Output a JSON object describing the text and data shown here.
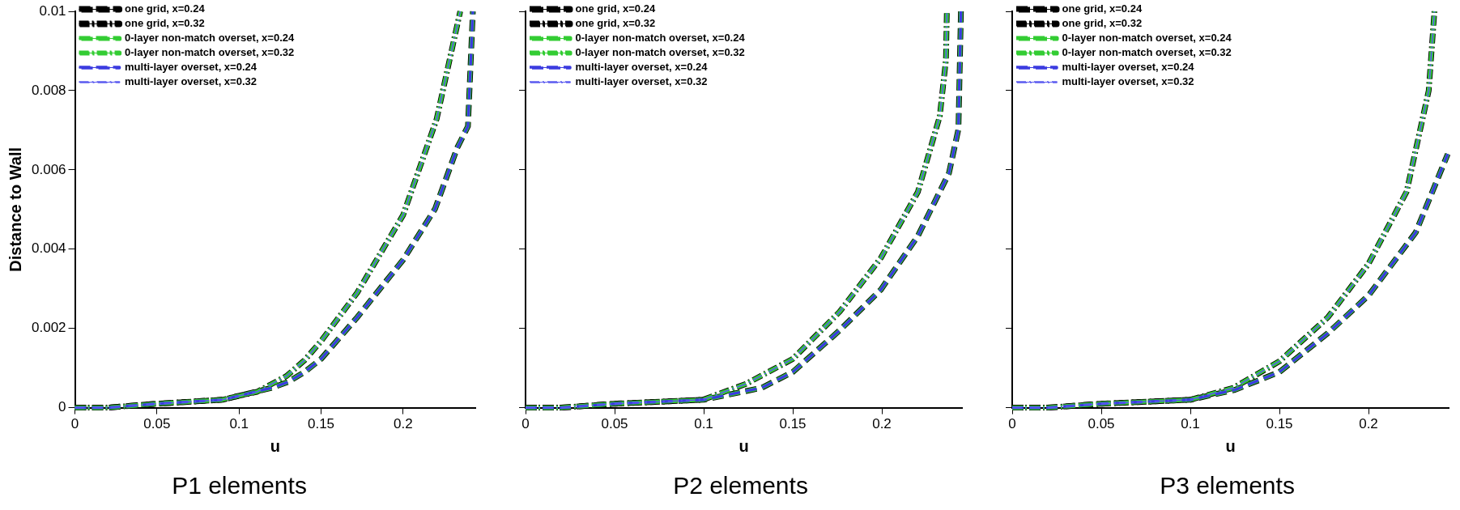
{
  "chart_data": [
    {
      "type": "line",
      "title": "P1 elements",
      "xlabel": "u",
      "ylabel": "Distance to Wall",
      "xlim": [
        0,
        0.244
      ],
      "ylim": [
        0,
        0.01
      ],
      "xticks": [
        0,
        0.05,
        0.1,
        0.15,
        0.2
      ],
      "yticks": [
        0,
        0.002,
        0.004,
        0.006,
        0.008,
        0.01
      ],
      "grid": false,
      "legend": "top left",
      "marker": "none",
      "series": [
        {
          "name": "one grid, x=0.24",
          "color": "#000000",
          "line_style": "dashed",
          "x": [
            0,
            0.02,
            0.05,
            0.09,
            0.1,
            0.11,
            0.12,
            0.13,
            0.14,
            0.15,
            0.172,
            0.2,
            0.2195,
            0.233,
            0.2395,
            0.2425
          ],
          "values": [
            0,
            0,
            0.0001,
            0.0002,
            0.0003,
            0.0004,
            0.0005,
            0.00065,
            0.0009,
            0.00123,
            0.00228,
            0.00373,
            0.00502,
            0.00656,
            0.0071,
            0.01
          ]
        },
        {
          "name": "one grid, x=0.32",
          "color": "#000000",
          "line_style": "dashdot",
          "x": [
            0,
            0.02,
            0.05,
            0.09,
            0.1,
            0.111,
            0.12,
            0.129,
            0.14,
            0.15,
            0.172,
            0.2,
            0.2204,
            0.2348
          ],
          "values": [
            0,
            0,
            0.0001,
            0.0002,
            0.0003,
            0.0004,
            0.0006,
            0.0008,
            0.0012,
            0.00168,
            0.0029,
            0.00486,
            0.00728,
            0.01
          ]
        },
        {
          "name": "0-layer non-match overset, x=0.24",
          "color": "#33cc33",
          "line_style": "dashed",
          "x": [
            0,
            0.02,
            0.05,
            0.09,
            0.1,
            0.11,
            0.12,
            0.13,
            0.14,
            0.15,
            0.172,
            0.2,
            0.2195,
            0.233,
            0.2395,
            0.2425
          ],
          "values": [
            0,
            0,
            0.0001,
            0.0002,
            0.0003,
            0.0004,
            0.0005,
            0.00065,
            0.0009,
            0.00123,
            0.00228,
            0.00373,
            0.00502,
            0.00656,
            0.0071,
            0.01
          ]
        },
        {
          "name": "0-layer non-match overset, x=0.32",
          "color": "#33cc33",
          "line_style": "dashdot",
          "x": [
            0,
            0.02,
            0.05,
            0.09,
            0.1,
            0.111,
            0.12,
            0.129,
            0.14,
            0.15,
            0.172,
            0.2,
            0.2204,
            0.2348
          ],
          "values": [
            0,
            0,
            0.0001,
            0.0002,
            0.0003,
            0.0004,
            0.0006,
            0.0008,
            0.0012,
            0.00168,
            0.0029,
            0.00486,
            0.00728,
            0.01
          ]
        },
        {
          "name": "multi-layer overset, x=0.24",
          "color": "#3b3be0",
          "line_style": "dashed",
          "x": [
            0,
            0.02,
            0.05,
            0.09,
            0.1,
            0.11,
            0.12,
            0.13,
            0.14,
            0.15,
            0.172,
            0.2,
            0.2195,
            0.233,
            0.2395,
            0.2425
          ],
          "values": [
            0,
            0,
            0.0001,
            0.0002,
            0.0003,
            0.0004,
            0.0005,
            0.00065,
            0.0009,
            0.00123,
            0.00228,
            0.00373,
            0.00502,
            0.00656,
            0.0071,
            0.01
          ]
        },
        {
          "name": "multi-layer overset, x=0.32",
          "color": "#5a5af0",
          "line_style": "dashdot",
          "x": [
            0,
            0.02,
            0.05,
            0.09,
            0.1,
            0.111,
            0.12,
            0.129,
            0.14,
            0.15,
            0.172,
            0.2,
            0.2204,
            0.2348
          ],
          "values": [
            0,
            0,
            0.0001,
            0.0002,
            0.0003,
            0.0004,
            0.0006,
            0.0008,
            0.0012,
            0.00168,
            0.0029,
            0.00486,
            0.00728,
            0.01
          ]
        }
      ]
    },
    {
      "type": "line",
      "title": "P2 elements",
      "xlabel": "u",
      "xlim": [
        0,
        0.245
      ],
      "ylim": [
        0,
        0.01
      ],
      "xticks": [
        0,
        0.05,
        0.1,
        0.15,
        0.2
      ],
      "yticks": [
        0,
        0.002,
        0.004,
        0.006,
        0.008,
        0.01
      ],
      "tick_labels": "x",
      "grid": false,
      "legend": "top left",
      "marker": "none",
      "series": [
        {
          "name": "one grid, x=0.24",
          "color": "#000000",
          "line_style": "dashed",
          "x": [
            0,
            0.02,
            0.05,
            0.1,
            0.1325,
            0.15,
            0.1763,
            0.1995,
            0.2202,
            0.2377,
            0.243,
            0.2444
          ],
          "values": [
            0,
            0,
            0.0001,
            0.0002,
            0.0005,
            0.0009,
            0.00195,
            0.00298,
            0.00433,
            0.00592,
            0.00703,
            0.01
          ]
        },
        {
          "name": "one grid, x=0.32",
          "color": "#000000",
          "line_style": "dashdot",
          "x": [
            0,
            0.02,
            0.05,
            0.0996,
            0.1237,
            0.15,
            0.1763,
            0.1995,
            0.2202,
            0.2325,
            0.236,
            0.2365
          ],
          "values": [
            0,
            0,
            0.0001,
            0.0002,
            0.0006,
            0.00123,
            0.00242,
            0.00378,
            0.00544,
            0.00735,
            0.00878,
            0.01
          ]
        },
        {
          "name": "0-layer non-match overset, x=0.24",
          "color": "#33cc33",
          "line_style": "dashed",
          "x": [
            0,
            0.02,
            0.05,
            0.1,
            0.1325,
            0.15,
            0.1763,
            0.1995,
            0.2202,
            0.2377,
            0.243,
            0.2444
          ],
          "values": [
            0,
            0,
            0.0001,
            0.0002,
            0.0005,
            0.0009,
            0.00195,
            0.00298,
            0.00433,
            0.00592,
            0.00703,
            0.01
          ]
        },
        {
          "name": "0-layer non-match overset, x=0.32",
          "color": "#33cc33",
          "line_style": "dashdot",
          "x": [
            0,
            0.02,
            0.05,
            0.0996,
            0.1237,
            0.15,
            0.1763,
            0.1995,
            0.2202,
            0.2325,
            0.236,
            0.2365
          ],
          "values": [
            0,
            0,
            0.0001,
            0.0002,
            0.0006,
            0.00123,
            0.00242,
            0.00378,
            0.00544,
            0.00735,
            0.00878,
            0.01
          ]
        },
        {
          "name": "multi-layer overset, x=0.24",
          "color": "#3b3be0",
          "line_style": "dashed",
          "x": [
            0,
            0.02,
            0.05,
            0.1,
            0.1325,
            0.15,
            0.1763,
            0.1995,
            0.2202,
            0.2377,
            0.243,
            0.2444
          ],
          "values": [
            0,
            0,
            0.0001,
            0.0002,
            0.0005,
            0.0009,
            0.00195,
            0.00298,
            0.00433,
            0.00592,
            0.00703,
            0.01
          ]
        },
        {
          "name": "multi-layer overset, x=0.32",
          "color": "#5a5af0",
          "line_style": "dashdot",
          "x": [
            0,
            0.02,
            0.05,
            0.0996,
            0.1237,
            0.15,
            0.1763,
            0.1995,
            0.2202,
            0.2325,
            0.236,
            0.2365
          ],
          "values": [
            0,
            0,
            0.0001,
            0.0002,
            0.0006,
            0.00123,
            0.00242,
            0.00378,
            0.00544,
            0.00735,
            0.00878,
            0.01
          ]
        }
      ]
    },
    {
      "type": "line",
      "title": "P3 elements",
      "xlabel": "u",
      "xlim": [
        0,
        0.245
      ],
      "ylim": [
        0,
        0.01
      ],
      "xticks": [
        0,
        0.05,
        0.1,
        0.15,
        0.2
      ],
      "yticks": [
        0,
        0.002,
        0.004,
        0.006,
        0.008,
        0.01
      ],
      "tick_labels": "x",
      "grid": false,
      "legend": "top left",
      "marker": "none",
      "series": [
        {
          "name": "one grid, x=0.24",
          "color": "#000000",
          "line_style": "dashed",
          "x": [
            0,
            0.02,
            0.05,
            0.1,
            0.125,
            0.15,
            0.1772,
            0.2,
            0.2265,
            0.2445
          ],
          "values": [
            0,
            0,
            0.0001,
            0.0002,
            0.00045,
            0.0009,
            0.00188,
            0.00283,
            0.00442,
            0.0064
          ]
        },
        {
          "name": "one grid, x=0.32",
          "color": "#000000",
          "line_style": "dashdot",
          "x": [
            0,
            0.02,
            0.05,
            0.1,
            0.1242,
            0.15,
            0.1772,
            0.2,
            0.2214,
            0.2338,
            0.237
          ],
          "values": [
            0,
            0,
            0.0001,
            0.0002,
            0.0005,
            0.00117,
            0.00228,
            0.00363,
            0.00545,
            0.008,
            0.01
          ]
        },
        {
          "name": "0-layer non-match overset, x=0.24",
          "color": "#33cc33",
          "line_style": "dashed",
          "x": [
            0,
            0.02,
            0.05,
            0.1,
            0.125,
            0.15,
            0.1772,
            0.2,
            0.2265,
            0.2445
          ],
          "values": [
            0,
            0,
            0.0001,
            0.0002,
            0.00045,
            0.0009,
            0.00188,
            0.00283,
            0.00442,
            0.0064
          ]
        },
        {
          "name": "0-layer non-match overset, x=0.32",
          "color": "#33cc33",
          "line_style": "dashdot",
          "x": [
            0,
            0.02,
            0.05,
            0.1,
            0.1242,
            0.15,
            0.1772,
            0.2,
            0.2214,
            0.2338,
            0.237
          ],
          "values": [
            0,
            0,
            0.0001,
            0.0002,
            0.0005,
            0.00117,
            0.00228,
            0.00363,
            0.00545,
            0.008,
            0.01
          ]
        },
        {
          "name": "multi-layer overset, x=0.24",
          "color": "#3b3be0",
          "line_style": "dashed",
          "x": [
            0,
            0.02,
            0.05,
            0.1,
            0.125,
            0.15,
            0.1772,
            0.2,
            0.2265,
            0.2445
          ],
          "values": [
            0,
            0,
            0.0001,
            0.0002,
            0.00045,
            0.0009,
            0.00188,
            0.00283,
            0.00442,
            0.0064
          ]
        },
        {
          "name": "multi-layer overset, x=0.32",
          "color": "#5a5af0",
          "line_style": "dashdot",
          "x": [
            0,
            0.02,
            0.05,
            0.1,
            0.1242,
            0.15,
            0.1772,
            0.2,
            0.2214,
            0.2338,
            0.237
          ],
          "values": [
            0,
            0,
            0.0001,
            0.0002,
            0.0005,
            0.00117,
            0.00228,
            0.00363,
            0.00545,
            0.008,
            0.01
          ]
        }
      ]
    }
  ]
}
